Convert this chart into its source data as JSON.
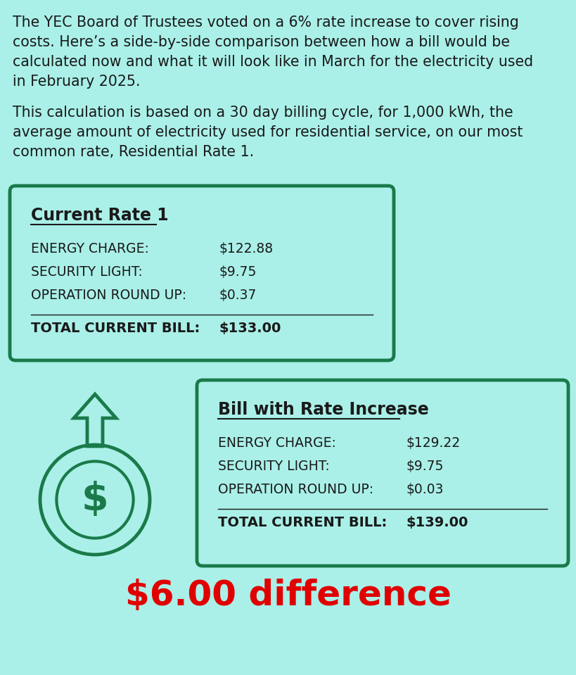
{
  "background_color": "#aaf0e8",
  "text_color": "#1a1a1a",
  "green_color": "#1a7a4a",
  "red_color": "#e00000",
  "para1_lines": [
    "The YEC Board of Trustees voted on a 6% rate increase to cover rising",
    "costs. Here’s a side-by-side comparison between how a bill would be",
    "calculated now and what it will look like in March for the electricity used",
    "in February 2025."
  ],
  "para2_lines": [
    "This calculation is based on a 30 day billing cycle, for 1,000 kWh, the",
    "average amount of electricity used for residential service, on our most",
    "common rate, Residential Rate 1."
  ],
  "box1_title": "Current Rate 1",
  "box1_rows": [
    [
      "ENERGY CHARGE:",
      "$122.88"
    ],
    [
      "SECURITY LIGHT:",
      "$9.75"
    ],
    [
      "OPERATION ROUND UP:",
      "$0.37"
    ]
  ],
  "box1_total_label": "TOTAL CURRENT BILL:",
  "box1_total_value": "$133.00",
  "box2_title": "Bill with Rate Increase",
  "box2_rows": [
    [
      "ENERGY CHARGE:",
      "$129.22"
    ],
    [
      "SECURITY LIGHT:",
      "$9.75"
    ],
    [
      "OPERATION ROUND UP:",
      "$0.03"
    ]
  ],
  "box2_total_label": "TOTAL CURRENT BILL:",
  "box2_total_value": "$139.00",
  "difference_text": "$6.00 difference"
}
